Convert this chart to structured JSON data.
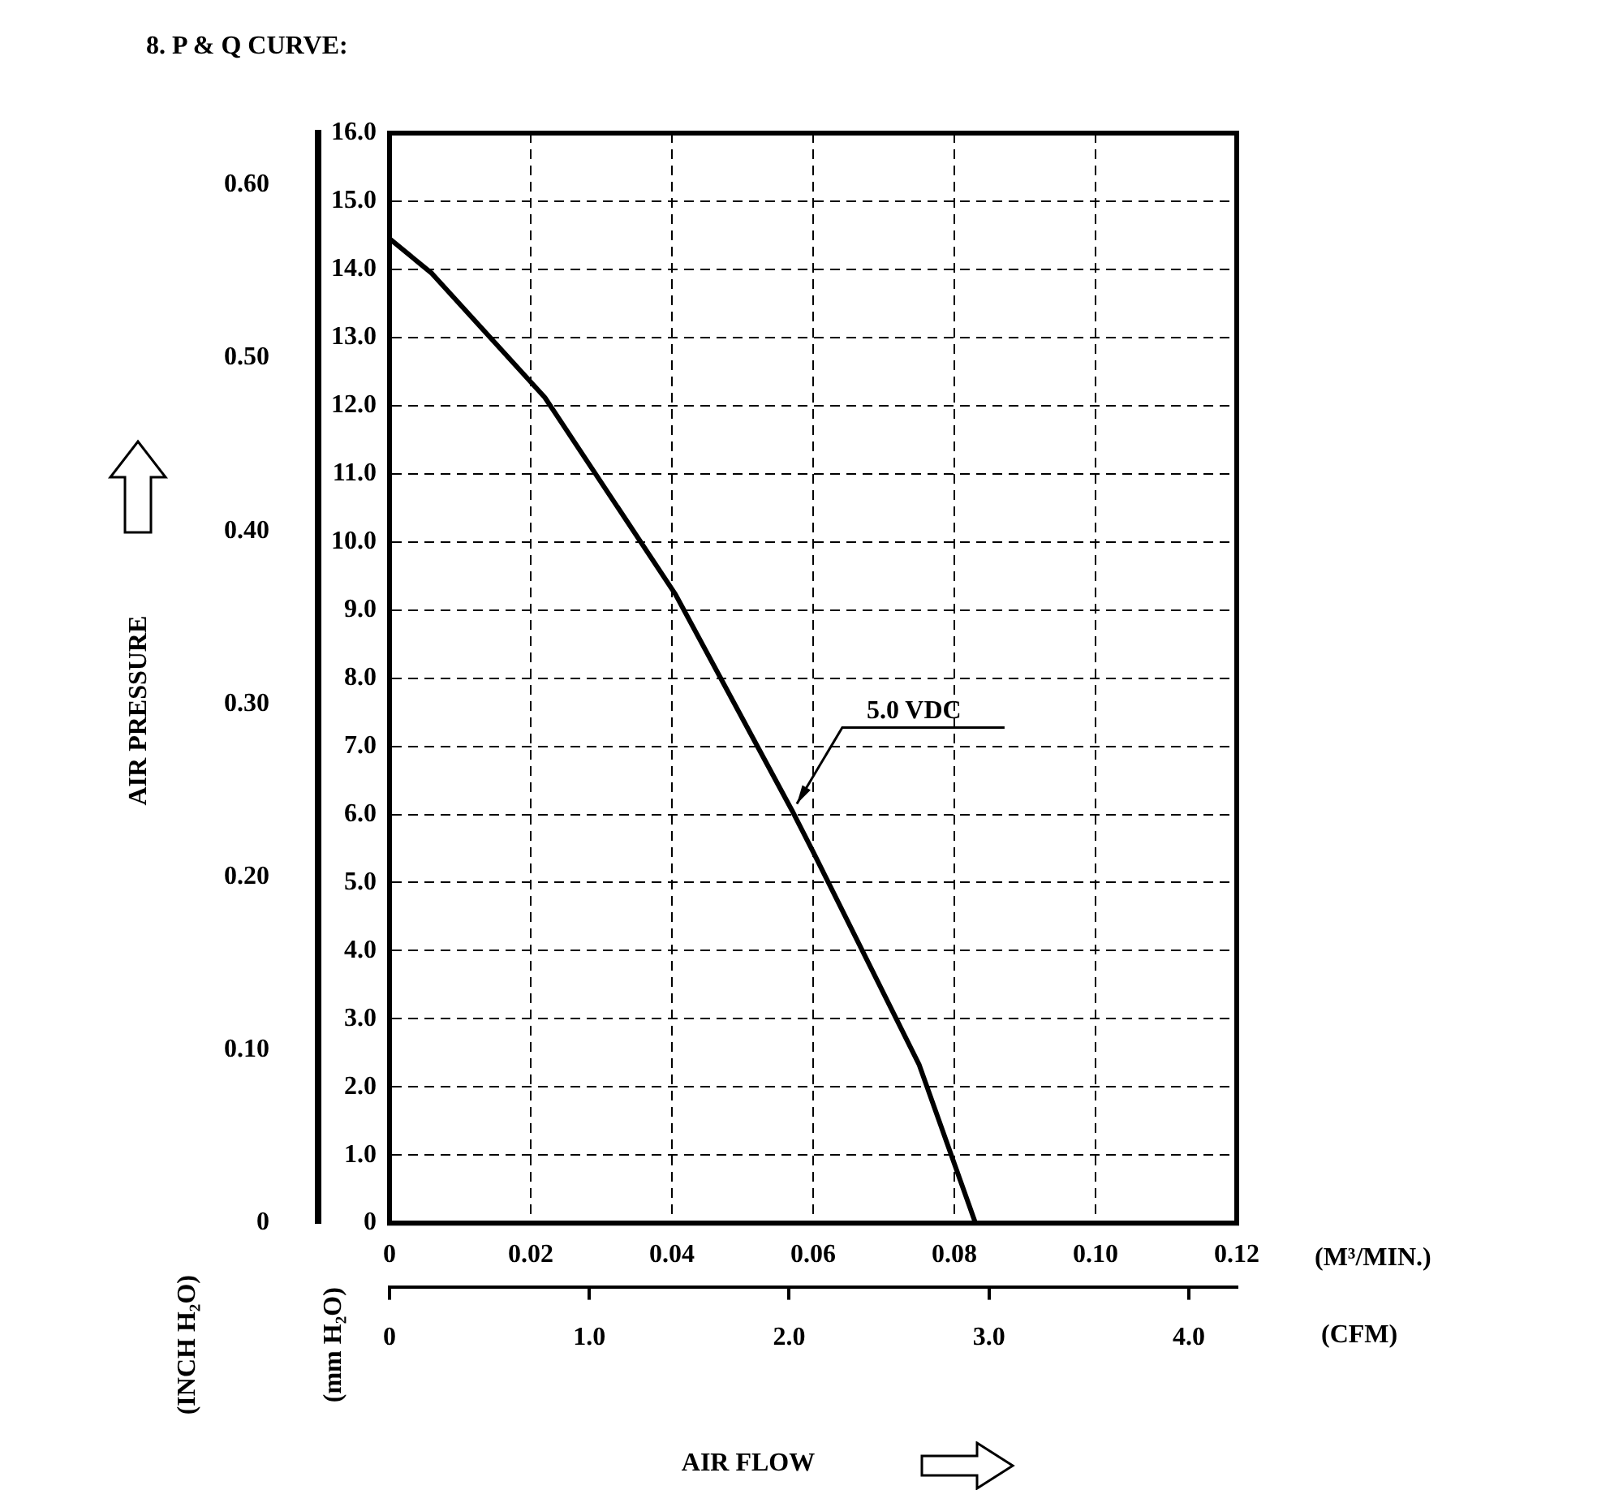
{
  "chart_data": {
    "type": "line",
    "title": "8. P & Q CURVE:",
    "xlabel": "(M³/MIN.)",
    "x2label": "(CFM)",
    "ylabel": "(mm H₂O)",
    "y2label": "(INCH H₂O)",
    "annotations": [
      "AIR PRESSURE",
      "AIR FLOW"
    ],
    "xlim": [
      0,
      0.12
    ],
    "xticks": [
      0,
      0.02,
      0.04,
      0.06,
      0.08,
      {
        "value": 0.1,
        "label": "0.10"
      },
      0.12
    ],
    "x2lim": [
      0,
      4.24
    ],
    "x2ticks": [
      0,
      {
        "value": 1,
        "label": "1.0"
      },
      {
        "value": 2,
        "label": "2.0"
      },
      {
        "value": 3,
        "label": "3.0"
      },
      {
        "value": 4,
        "label": "4.0"
      }
    ],
    "ylim": [
      0,
      16
    ],
    "yticks": [
      0,
      {
        "value": 1,
        "label": "1.0"
      },
      {
        "value": 2,
        "label": "2.0"
      },
      {
        "value": 3,
        "label": "3.0"
      },
      {
        "value": 4,
        "label": "4.0"
      },
      {
        "value": 5,
        "label": "5.0"
      },
      {
        "value": 6,
        "label": "6.0"
      },
      {
        "value": 7,
        "label": "7.0"
      },
      {
        "value": 8,
        "label": "8.0"
      },
      {
        "value": 9,
        "label": "9.0"
      },
      {
        "value": 10,
        "label": "10.0"
      },
      {
        "value": 11,
        "label": "11.0"
      },
      {
        "value": 12,
        "label": "12.0"
      },
      {
        "value": 13,
        "label": "13.0"
      },
      {
        "value": 14,
        "label": "14.0"
      },
      {
        "value": 15,
        "label": "15.0"
      },
      {
        "value": 16,
        "label": "16.0"
      }
    ],
    "y2lim": [
      0,
      0.63
    ],
    "y2ticks": [
      0,
      {
        "value": 0.1,
        "label": "0.10"
      },
      {
        "value": 0.2,
        "label": "0.20"
      },
      {
        "value": 0.3,
        "label": "0.30"
      },
      {
        "value": 0.4,
        "label": "0.40"
      },
      {
        "value": 0.5,
        "label": "0.50"
      },
      {
        "value": 0.6,
        "label": "0.60"
      }
    ],
    "grid": true,
    "series": [
      {
        "name": "5.0 VDC",
        "color": "#000000",
        "x": [
          0,
          0.006,
          0.022,
          0.0405,
          0.057,
          0.06,
          0.075,
          0.083
        ],
        "values": [
          14.45,
          13.94,
          12.12,
          9.23,
          6.06,
          5.45,
          2.33,
          0
        ]
      }
    ]
  }
}
